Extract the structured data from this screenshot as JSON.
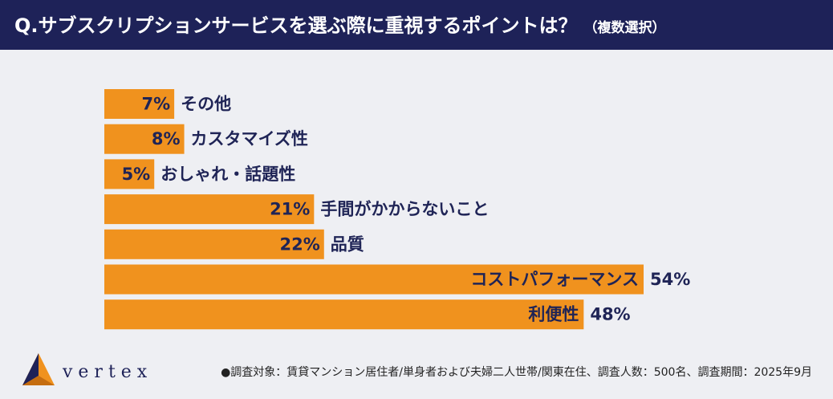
{
  "chart_data": {
    "type": "bar",
    "title": "Q.サブスクリプションサービスを選ぶ際に重視するポイントは？",
    "subtitle": "（複数選択）",
    "categories": [
      "その他",
      "カスタマイズ性",
      "おしゃれ・話題性",
      "手間がかからないこと",
      "品質",
      "コストパフォーマンス",
      "利便性"
    ],
    "values": [
      7,
      8,
      5,
      21,
      22,
      54,
      48
    ],
    "value_labels": [
      "7%",
      "8%",
      "5%",
      "21%",
      "22%",
      "54%",
      "48%"
    ],
    "color": "#f0921e",
    "note": "●調査対象：賃貸マンション居住者/単身者および夫婦二人世帯/関東在住、調査人数：500名、調査期間：2025年9月",
    "brand": "v e r t e x"
  }
}
